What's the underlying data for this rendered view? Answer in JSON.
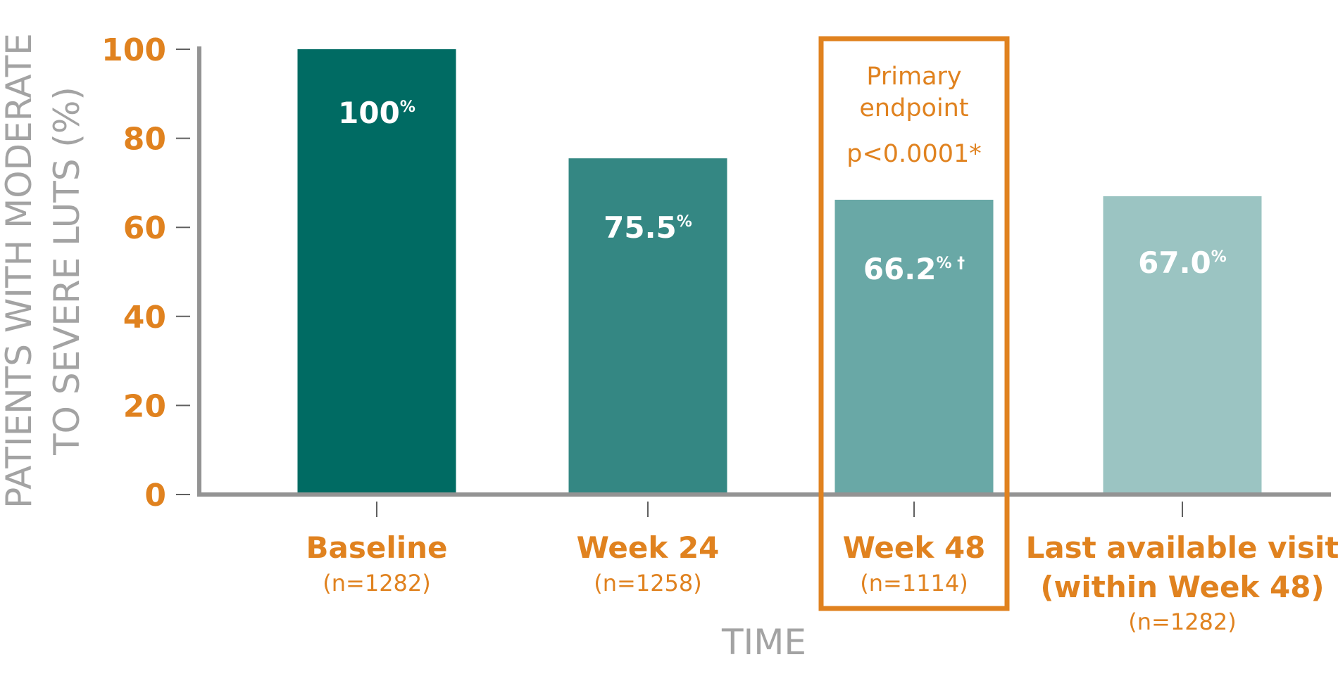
{
  "chart_data": {
    "type": "bar",
    "title": "",
    "ylabel": [
      "PATIENTS WITH MODERATE",
      "TO SEVERE LUTS (%)"
    ],
    "xlabel": "TIME",
    "ylim": [
      0,
      100
    ],
    "yticks": [
      "0",
      "20",
      "40",
      "60",
      "80",
      "100"
    ],
    "categories": [
      {
        "name": [
          "Baseline"
        ],
        "n": "(n=1282)"
      },
      {
        "name": [
          "Week 24"
        ],
        "n": "(n=1258)"
      },
      {
        "name": [
          "Week 48"
        ],
        "n": "(n=1114)"
      },
      {
        "name": [
          "Last available visit",
          "(within Week 48)"
        ],
        "n": "(n=1282)"
      }
    ],
    "values": [
      100,
      75.5,
      66.2,
      67.0
    ],
    "value_labels": [
      "100",
      "75.5",
      "66.2",
      "67.0"
    ],
    "value_suffixes": [
      "%",
      "%",
      "% †",
      "%"
    ],
    "bar_colors": [
      "#006B63",
      "#348783",
      "#69A8A6",
      "#9BC4C2"
    ],
    "highlight": {
      "category_index": 2,
      "lines": [
        "Primary",
        "endpoint",
        "p<0.0001*"
      ],
      "color": "#E0821F"
    },
    "axis_color": "#939393",
    "grid": false
  }
}
